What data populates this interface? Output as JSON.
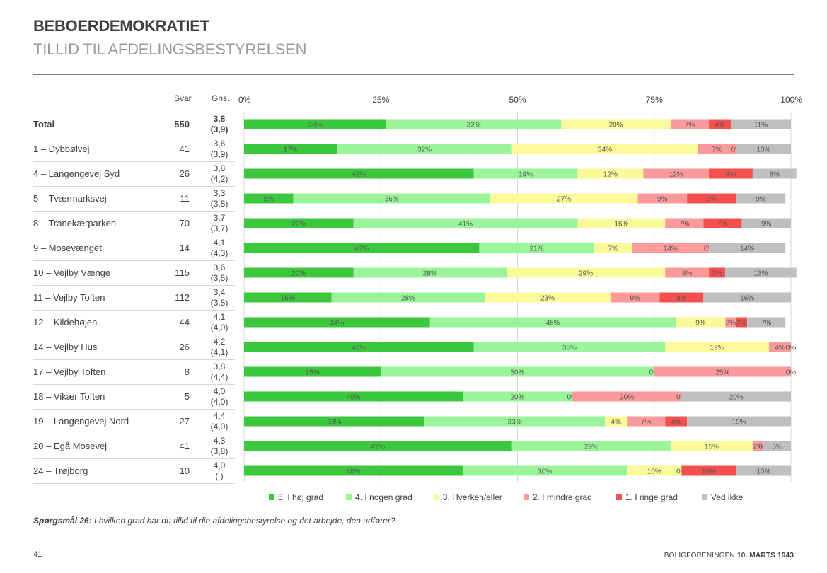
{
  "header": {
    "title": "BEBOERDEMOKRATIET",
    "subtitle": "TILLID TIL AFDELINGSBESTYRELSEN",
    "col_svar": "Svar",
    "col_gns": "Gns."
  },
  "question": {
    "label": "Spørgsmål 26:",
    "text": " I hvilken grad har du tillid til din afdelingsbestyrelse og det arbejde, den udfører?"
  },
  "footer": {
    "page_number": "41",
    "org": "BOLIGFORENINGEN ",
    "date": "10. MARTS 1943"
  },
  "chart_data": {
    "type": "bar",
    "orientation": "horizontal-stacked-100",
    "xlim": [
      0,
      100
    ],
    "ticks": [
      "0%",
      "25%",
      "50%",
      "75%",
      "100%"
    ],
    "series": [
      {
        "name": "5. I høj grad",
        "color": "#3cc83c"
      },
      {
        "name": "4. I nogen grad",
        "color": "#9af59a"
      },
      {
        "name": "3. Hverken/eller",
        "color": "#fafa9a"
      },
      {
        "name": "2. I mindre grad",
        "color": "#fa9a9a"
      },
      {
        "name": "1. I ringe grad",
        "color": "#f55050"
      },
      {
        "name": "Ved ikke",
        "color": "#bfbfbf"
      }
    ],
    "rows": [
      {
        "label": "Total",
        "n": "550",
        "avg": "3,8",
        "avg_prev": "(3,9)",
        "bold": true,
        "values": [
          26,
          32,
          20,
          7,
          4,
          11
        ],
        "labels": [
          "26%",
          "32%",
          "20%",
          "7%",
          "4%",
          "11%"
        ]
      },
      {
        "label": "1 – Dybbølvej",
        "n": "41",
        "avg": "3,6",
        "avg_prev": "(3,9)",
        "values": [
          17,
          32,
          34,
          7,
          0,
          10
        ],
        "labels": [
          "17%",
          "32%",
          "34%",
          "7%",
          "0%",
          "10%"
        ]
      },
      {
        "label": "4 – Langengevej Syd",
        "n": "26",
        "avg": "3,8",
        "avg_prev": "(4,2)",
        "values": [
          42,
          19,
          12,
          12,
          8,
          8
        ],
        "labels": [
          "42%",
          "19%",
          "12%",
          "12%",
          "8%",
          "8%"
        ]
      },
      {
        "label": "5 – Tværmarksvej",
        "n": "11",
        "avg": "3,3",
        "avg_prev": "(3,8)",
        "values": [
          9,
          36,
          27,
          9,
          9,
          9
        ],
        "labels": [
          "9%",
          "36%",
          "27%",
          "9%",
          "9%",
          "9%"
        ]
      },
      {
        "label": "8 – Tranekærparken",
        "n": "70",
        "avg": "3,7",
        "avg_prev": "(3,7)",
        "values": [
          20,
          41,
          16,
          7,
          7,
          9
        ],
        "labels": [
          "20%",
          "41%",
          "16%",
          "7%",
          "7%",
          "9%"
        ]
      },
      {
        "label": "9 – Mosevænget",
        "n": "14",
        "avg": "4,1",
        "avg_prev": "(4,3)",
        "values": [
          43,
          21,
          7,
          14,
          0,
          14
        ],
        "labels": [
          "43%",
          "21%",
          "7%",
          "14%",
          "0%",
          "14%"
        ]
      },
      {
        "label": "10 – Vejlby Vænge",
        "n": "115",
        "avg": "3,6",
        "avg_prev": "(3,5)",
        "values": [
          20,
          28,
          29,
          8,
          3,
          13
        ],
        "labels": [
          "20%",
          "28%",
          "29%",
          "8%",
          "3%",
          "13%"
        ]
      },
      {
        "label": "11 – Vejlby Toften",
        "n": "112",
        "avg": "3,4",
        "avg_prev": "(3,8)",
        "values": [
          16,
          28,
          23,
          9,
          8,
          16
        ],
        "labels": [
          "16%",
          "28%",
          "23%",
          "9%",
          "8%",
          "16%"
        ]
      },
      {
        "label": "12 – Kildehøjen",
        "n": "44",
        "avg": "4,1",
        "avg_prev": "(4,0)",
        "values": [
          34,
          45,
          9,
          2,
          2,
          7
        ],
        "labels": [
          "34%",
          "45%",
          "9%",
          "2%",
          "2%",
          "7%"
        ]
      },
      {
        "label": "14 – Vejlby Hus",
        "n": "26",
        "avg": "4,2",
        "avg_prev": "(4,1)",
        "values": [
          42,
          35,
          19,
          4,
          0,
          0
        ],
        "labels": [
          "42%",
          "35%",
          "19%",
          "4%",
          "0%",
          "0%"
        ]
      },
      {
        "label": "17 – Vejlby Toften",
        "n": "8",
        "avg": "3,8",
        "avg_prev": "(4,4)",
        "values": [
          25,
          50,
          0,
          25,
          0,
          0
        ],
        "labels": [
          "25%",
          "50%",
          "0%",
          "25%",
          "",
          "0%"
        ]
      },
      {
        "label": "18 – Vikær Toften",
        "n": "5",
        "avg": "4,0",
        "avg_prev": "(4,0)",
        "values": [
          40,
          20,
          0,
          20,
          0,
          20
        ],
        "labels": [
          "40%",
          "20%",
          "0%",
          "20%",
          "0%",
          "20%"
        ]
      },
      {
        "label": "19 – Langengevej Nord",
        "n": "27",
        "avg": "4,4",
        "avg_prev": "(4,0)",
        "values": [
          33,
          33,
          4,
          7,
          4,
          19
        ],
        "labels": [
          "33%",
          "33%",
          "4%",
          "7%",
          "4%",
          "19%"
        ]
      },
      {
        "label": "20 – Egå Mosevej",
        "n": "41",
        "avg": "4,3",
        "avg_prev": "(3,8)",
        "values": [
          49,
          29,
          15,
          2,
          0,
          5
        ],
        "labels": [
          "49%",
          "29%",
          "15%",
          "2%",
          "0%",
          "5%"
        ]
      },
      {
        "label": "24 – Trøjborg",
        "n": "10",
        "avg": "4,0",
        "avg_prev": "(  )",
        "values": [
          40,
          30,
          10,
          0,
          10,
          10
        ],
        "labels": [
          "40%",
          "30%",
          "10%",
          "0%",
          "10%",
          "10%"
        ]
      }
    ]
  }
}
